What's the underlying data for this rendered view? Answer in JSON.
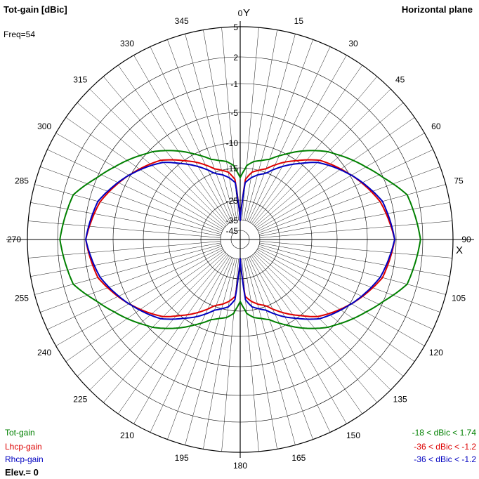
{
  "header": {
    "title": "Tot-gain [dBic]",
    "plane": "Horizontal plane",
    "freq": "Freq=54",
    "elevation": "Elev.= 0"
  },
  "axes": {
    "y_label": "Y",
    "x_label": "X"
  },
  "colors": {
    "tot": "#008000",
    "lhcp": "#dd0000",
    "rhcp": "#0000c0",
    "grid": "#000000"
  },
  "legend": [
    {
      "name": "Tot-gain",
      "range": "-18 < dBic < 1.74",
      "color": "#008000"
    },
    {
      "name": "Lhcp-gain",
      "range": "-36 < dBic < -1.2",
      "color": "#dd0000"
    },
    {
      "name": "Rhcp-gain",
      "range": "-36 < dBic < -1.2",
      "color": "#0000c0"
    }
  ],
  "chart_data": {
    "type": "line",
    "subtype": "polar",
    "angle_ticks": [
      0,
      15,
      30,
      45,
      60,
      75,
      90,
      105,
      120,
      135,
      150,
      165,
      180,
      195,
      210,
      225,
      240,
      255,
      270,
      285,
      300,
      315,
      330,
      345
    ],
    "radial_ticks": [
      "5",
      "2",
      "-1",
      "-5",
      "-10",
      "-15",
      "-25",
      "-35",
      "-45"
    ],
    "radial_tick_values": [
      5,
      2,
      -1,
      -5,
      -10,
      -15,
      -25,
      -35,
      -45
    ],
    "grid": true,
    "x": [
      0,
      5,
      10,
      15,
      20,
      30,
      45,
      60,
      75,
      90,
      105,
      120,
      135,
      150,
      160,
      165,
      170,
      175,
      180,
      185,
      190,
      195,
      200,
      210,
      225,
      240,
      255,
      270,
      285,
      300,
      315,
      330,
      340,
      345,
      350,
      355,
      360
    ],
    "series": [
      {
        "name": "Tot-gain",
        "color": "#008000",
        "values": [
          -18,
          -14.5,
          -13.5,
          -13,
          -12.3,
          -9.5,
          -5.5,
          -2.5,
          0.9,
          1.74,
          0.9,
          -2.5,
          -5.5,
          -9.5,
          -12.3,
          -13,
          -13.5,
          -14.5,
          -18,
          -14.5,
          -13.5,
          -13,
          -12.3,
          -9.5,
          -5.5,
          -2.5,
          0.9,
          1.74,
          0.9,
          -2.5,
          -5.5,
          -9.5,
          -12.3,
          -13,
          -13.5,
          -14.5,
          -18
        ]
      },
      {
        "name": "Lhcp-gain",
        "color": "#dd0000",
        "values": [
          -36,
          -18.5,
          -16,
          -15,
          -14.3,
          -11.5,
          -7.5,
          -4.8,
          -2.5,
          -1.2,
          -2.2,
          -4.8,
          -8,
          -12.5,
          -15.5,
          -16.5,
          -17.8,
          -19.5,
          -36,
          -19.5,
          -17.8,
          -16.5,
          -15.5,
          -12.5,
          -8,
          -4.8,
          -2.2,
          -1.2,
          -2.5,
          -4.8,
          -7.5,
          -11.5,
          -14.3,
          -15,
          -16,
          -18.5,
          -36
        ]
      },
      {
        "name": "Rhcp-gain",
        "color": "#0000c0",
        "values": [
          -36,
          -19.5,
          -17.8,
          -16.5,
          -15.5,
          -12.5,
          -8,
          -4.8,
          -2.2,
          -1.2,
          -2.5,
          -4.8,
          -7.5,
          -11.5,
          -14.3,
          -15,
          -16,
          -18.5,
          -36,
          -18.5,
          -16,
          -15,
          -14.3,
          -11.5,
          -7.5,
          -4.8,
          -2.5,
          -1.2,
          -2.2,
          -4.8,
          -8,
          -12.5,
          -15.5,
          -16.5,
          -17.8,
          -19.5,
          -36
        ]
      }
    ]
  }
}
